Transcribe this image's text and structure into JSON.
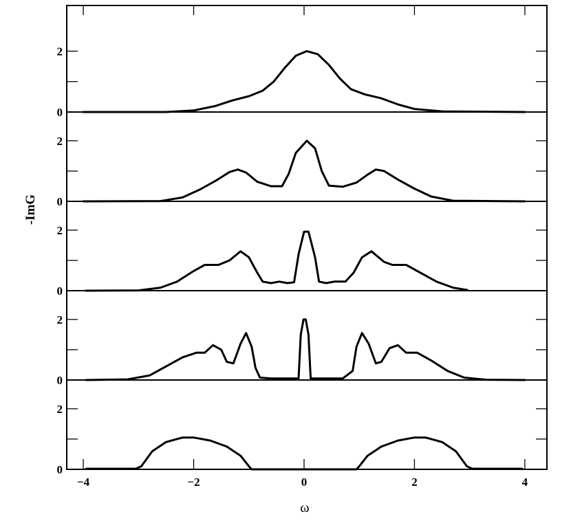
{
  "chart_data": {
    "type": "line",
    "layout": "5 vertically stacked panels sharing the x axis",
    "xlabel": "ω",
    "ylabel": "-ImG",
    "xlim": [
      -4.3,
      4.4
    ],
    "x_ticks": [
      -4,
      -2,
      0,
      2,
      4
    ],
    "x_tick_labels": [
      "-4",
      "-2",
      "0",
      "2",
      "4"
    ],
    "grid": false,
    "line_color": "#000000",
    "panels": [
      {
        "ylim": [
          0,
          3.5
        ],
        "y_ticks": [
          0,
          1,
          2
        ],
        "y_tick_labels": [
          "0",
          "2"
        ],
        "points": [
          [
            -4,
            0
          ],
          [
            -2.5,
            0
          ],
          [
            -2,
            0.05
          ],
          [
            -1.6,
            0.2
          ],
          [
            -1.3,
            0.38
          ],
          [
            -1.0,
            0.52
          ],
          [
            -0.75,
            0.7
          ],
          [
            -0.55,
            1.0
          ],
          [
            -0.35,
            1.45
          ],
          [
            -0.15,
            1.85
          ],
          [
            0.05,
            2.0
          ],
          [
            0.25,
            1.9
          ],
          [
            0.45,
            1.55
          ],
          [
            0.65,
            1.1
          ],
          [
            0.85,
            0.75
          ],
          [
            1.1,
            0.58
          ],
          [
            1.4,
            0.45
          ],
          [
            1.7,
            0.25
          ],
          [
            2.0,
            0.1
          ],
          [
            2.5,
            0.02
          ],
          [
            4,
            0
          ]
        ]
      },
      {
        "ylim": [
          0,
          2.95
        ],
        "y_ticks": [
          0,
          1,
          2
        ],
        "y_tick_labels": [
          "0",
          "2"
        ],
        "points": [
          [
            -4,
            0
          ],
          [
            -2.6,
            0.01
          ],
          [
            -2.2,
            0.13
          ],
          [
            -1.9,
            0.38
          ],
          [
            -1.6,
            0.68
          ],
          [
            -1.35,
            0.97
          ],
          [
            -1.2,
            1.05
          ],
          [
            -1.05,
            0.95
          ],
          [
            -0.85,
            0.65
          ],
          [
            -0.6,
            0.5
          ],
          [
            -0.4,
            0.5
          ],
          [
            -0.28,
            0.9
          ],
          [
            -0.15,
            1.6
          ],
          [
            0.05,
            2.0
          ],
          [
            0.2,
            1.75
          ],
          [
            0.32,
            1.0
          ],
          [
            0.45,
            0.52
          ],
          [
            0.7,
            0.48
          ],
          [
            0.95,
            0.62
          ],
          [
            1.15,
            0.88
          ],
          [
            1.3,
            1.05
          ],
          [
            1.45,
            1.0
          ],
          [
            1.7,
            0.72
          ],
          [
            2.0,
            0.42
          ],
          [
            2.3,
            0.16
          ],
          [
            2.7,
            0.02
          ],
          [
            4,
            0
          ]
        ]
      },
      {
        "ylim": [
          0,
          2.95
        ],
        "y_ticks": [
          0,
          1,
          2
        ],
        "y_tick_labels": [
          "0",
          "2"
        ],
        "points": [
          [
            -3.95,
            0
          ],
          [
            -3.0,
            0.01
          ],
          [
            -2.6,
            0.1
          ],
          [
            -2.3,
            0.3
          ],
          [
            -2.0,
            0.65
          ],
          [
            -1.8,
            0.85
          ],
          [
            -1.55,
            0.85
          ],
          [
            -1.35,
            1.0
          ],
          [
            -1.15,
            1.3
          ],
          [
            -1.0,
            1.1
          ],
          [
            -0.85,
            0.6
          ],
          [
            -0.75,
            0.3
          ],
          [
            -0.6,
            0.25
          ],
          [
            -0.45,
            0.3
          ],
          [
            -0.3,
            0.25
          ],
          [
            -0.18,
            0.28
          ],
          [
            -0.1,
            1.2
          ],
          [
            0.0,
            1.95
          ],
          [
            0.08,
            1.95
          ],
          [
            0.2,
            1.1
          ],
          [
            0.27,
            0.3
          ],
          [
            0.4,
            0.25
          ],
          [
            0.55,
            0.3
          ],
          [
            0.75,
            0.3
          ],
          [
            0.9,
            0.6
          ],
          [
            1.05,
            1.1
          ],
          [
            1.22,
            1.3
          ],
          [
            1.45,
            0.95
          ],
          [
            1.6,
            0.85
          ],
          [
            1.85,
            0.85
          ],
          [
            2.1,
            0.6
          ],
          [
            2.4,
            0.3
          ],
          [
            2.7,
            0.1
          ],
          [
            2.96,
            0.02
          ]
        ]
      },
      {
        "ylim": [
          0,
          2.95
        ],
        "y_ticks": [
          0,
          1,
          2
        ],
        "y_tick_labels": [
          "0",
          "2"
        ],
        "points": [
          [
            -3.95,
            0
          ],
          [
            -3.2,
            0.02
          ],
          [
            -2.8,
            0.15
          ],
          [
            -2.5,
            0.45
          ],
          [
            -2.2,
            0.75
          ],
          [
            -1.95,
            0.9
          ],
          [
            -1.8,
            0.9
          ],
          [
            -1.65,
            1.15
          ],
          [
            -1.5,
            1.0
          ],
          [
            -1.4,
            0.6
          ],
          [
            -1.28,
            0.55
          ],
          [
            -1.15,
            1.2
          ],
          [
            -1.05,
            1.55
          ],
          [
            -0.95,
            1.1
          ],
          [
            -0.88,
            0.4
          ],
          [
            -0.8,
            0.08
          ],
          [
            -0.6,
            0.05
          ],
          [
            -0.4,
            0.05
          ],
          [
            -0.1,
            0.05
          ],
          [
            -0.06,
            1.5
          ],
          [
            -0.01,
            2.0
          ],
          [
            0.03,
            2.0
          ],
          [
            0.08,
            1.5
          ],
          [
            0.12,
            0.05
          ],
          [
            0.4,
            0.05
          ],
          [
            0.7,
            0.05
          ],
          [
            0.88,
            0.3
          ],
          [
            0.95,
            1.1
          ],
          [
            1.05,
            1.55
          ],
          [
            1.17,
            1.2
          ],
          [
            1.3,
            0.55
          ],
          [
            1.4,
            0.6
          ],
          [
            1.55,
            1.05
          ],
          [
            1.7,
            1.15
          ],
          [
            1.85,
            0.9
          ],
          [
            2.05,
            0.9
          ],
          [
            2.3,
            0.65
          ],
          [
            2.6,
            0.3
          ],
          [
            2.9,
            0.08
          ],
          [
            3.3,
            0.01
          ],
          [
            4,
            0
          ]
        ]
      },
      {
        "ylim": [
          0,
          2.95
        ],
        "y_ticks": [
          0,
          1,
          2
        ],
        "y_tick_labels": [
          "0",
          "2"
        ],
        "points": [
          [
            -3.95,
            0.02
          ],
          [
            -3.05,
            0.02
          ],
          [
            -2.95,
            0.1
          ],
          [
            -2.75,
            0.6
          ],
          [
            -2.5,
            0.9
          ],
          [
            -2.2,
            1.05
          ],
          [
            -2.0,
            1.05
          ],
          [
            -1.7,
            0.95
          ],
          [
            -1.4,
            0.75
          ],
          [
            -1.15,
            0.45
          ],
          [
            -1.0,
            0.1
          ],
          [
            -0.95,
            0
          ],
          [
            0.95,
            0
          ],
          [
            1.0,
            0.1
          ],
          [
            1.15,
            0.45
          ],
          [
            1.4,
            0.75
          ],
          [
            1.7,
            0.95
          ],
          [
            2.0,
            1.05
          ],
          [
            2.2,
            1.05
          ],
          [
            2.5,
            0.9
          ],
          [
            2.75,
            0.6
          ],
          [
            2.95,
            0.1
          ],
          [
            3.05,
            0.02
          ],
          [
            3.95,
            0.02
          ]
        ]
      }
    ]
  }
}
